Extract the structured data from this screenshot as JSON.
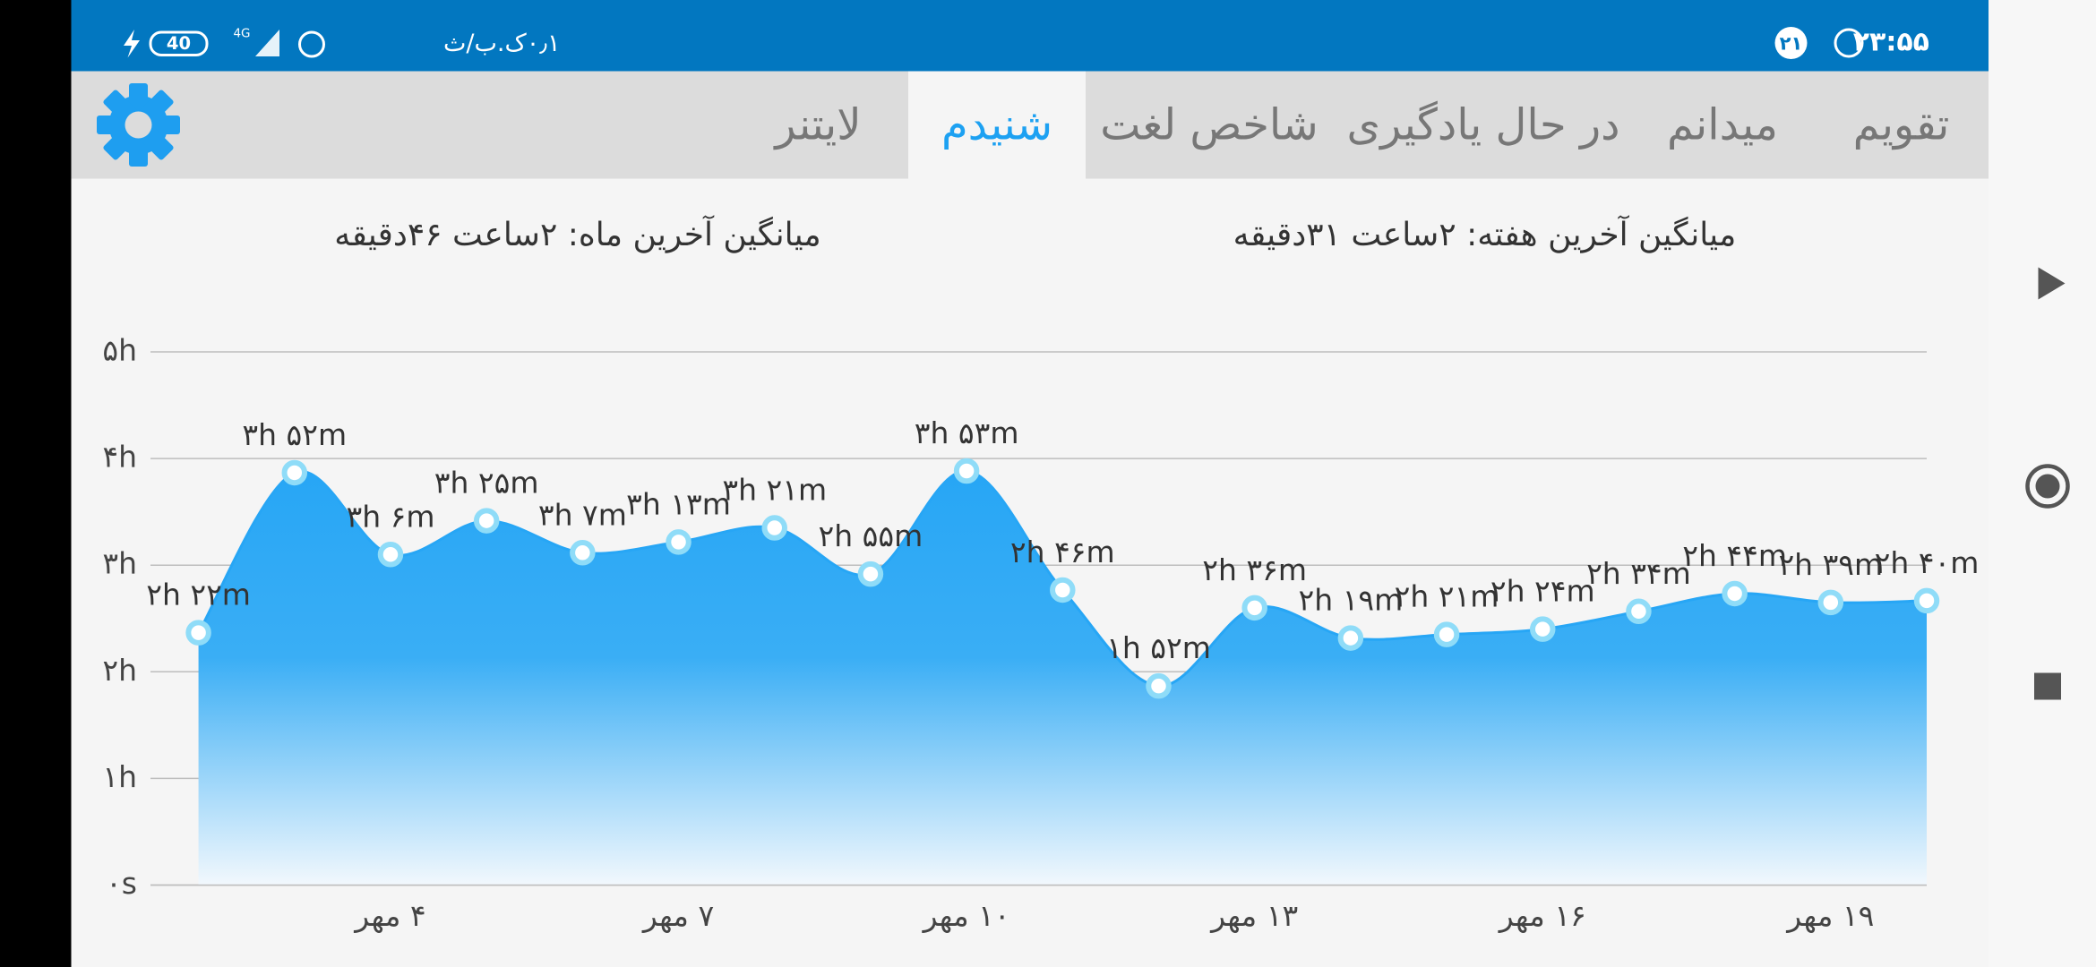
{
  "status_bar": {
    "time": "۲۳:۵۵",
    "notification_count": "۲۱",
    "net_speed": "۰٫۱ک.ب/ث",
    "network": "4G",
    "battery": "40"
  },
  "tabs": {
    "items": [
      "تقویم",
      "میدانم",
      "در حال یادگیری",
      "شاخص لغت",
      "شنیدم",
      "لایتنر"
    ],
    "selected": 4
  },
  "stats": {
    "week_average": "میانگین آخرین هفته: ۲ساعت ۳۱دقیقه",
    "month_average": "میانگین آخرین ماه: ۲ساعت ۴۶دقیقه"
  },
  "chart_data": {
    "type": "area",
    "x": [
      2,
      3,
      4,
      5,
      6,
      7,
      8,
      9,
      10,
      11,
      12,
      13,
      14,
      15,
      16,
      17,
      18,
      19,
      20
    ],
    "values": [
      2.3667,
      3.8667,
      3.1,
      3.4167,
      3.1167,
      3.2167,
      3.35,
      2.9167,
      3.8833,
      2.7667,
      1.8667,
      2.6,
      2.3167,
      2.35,
      2.4,
      2.5667,
      2.7333,
      2.65,
      2.6667
    ],
    "value_labels": [
      "۲h ۲۲m",
      "۳h ۵۲m",
      "۳h ۶m",
      "۳h ۲۵m",
      "۳h ۷m",
      "۳h ۱۳m",
      "۳h ۲۱m",
      "۲h ۵۵m",
      "۳h ۵۳m",
      "۲h ۴۶m",
      "۱h ۵۲m",
      "۲h ۳۶m",
      "۲h ۱۹m",
      "۲h ۲۱m",
      "۲h ۲۴m",
      "۲h ۳۴m",
      "۲h ۴۴m",
      "۲h ۳۹m",
      "۲h ۴۰m"
    ],
    "color": "#27a6f5",
    "xlim": [
      1.5,
      20
    ],
    "xticks": [
      {
        "value": 4,
        "label": "۴ مهر"
      },
      {
        "value": 7,
        "label": "۷ مهر"
      },
      {
        "value": 10,
        "label": "۱۰ مهر"
      },
      {
        "value": 13,
        "label": "۱۳ مهر"
      },
      {
        "value": 16,
        "label": "۱۶ مهر"
      },
      {
        "value": 19,
        "label": "۱۹ مهر"
      }
    ],
    "ylim": [
      0,
      5
    ],
    "yticks": [
      {
        "value": 0,
        "label": "۰s"
      },
      {
        "value": 1,
        "label": "۱h"
      },
      {
        "value": 2,
        "label": "۲h"
      },
      {
        "value": 3,
        "label": "۳h"
      },
      {
        "value": 4,
        "label": "۴h"
      },
      {
        "value": 5,
        "label": "۵h"
      }
    ],
    "grid": true
  }
}
